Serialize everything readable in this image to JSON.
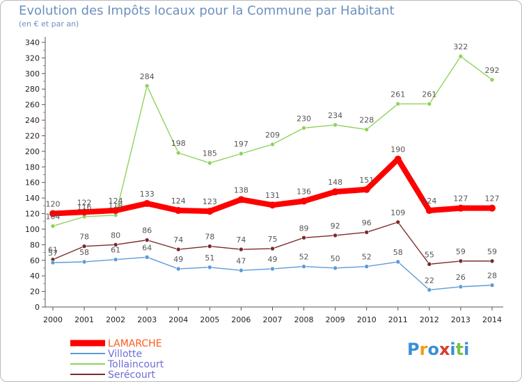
{
  "chart_data": {
    "type": "line",
    "title": "Evolution des Impôts locaux pour la Commune par Habitant",
    "subtitle": "(en € et par an)",
    "categories": [
      "2000",
      "2001",
      "2002",
      "2003",
      "2004",
      "2005",
      "2006",
      "2007",
      "2008",
      "2009",
      "2010",
      "2011",
      "2012",
      "2013",
      "2014"
    ],
    "ylim": [
      0,
      340
    ],
    "yticks": [
      0,
      20,
      40,
      60,
      80,
      100,
      120,
      140,
      160,
      180,
      200,
      220,
      240,
      260,
      280,
      300,
      320,
      340
    ],
    "grid": false,
    "legend_position": "bottom-left",
    "series": [
      {
        "name": "LAMARCHE",
        "color": "#ff0000",
        "values": [
          120,
          122,
          124,
          133,
          124,
          123,
          138,
          131,
          136,
          148,
          151,
          190,
          124,
          127,
          127
        ]
      },
      {
        "name": "Villotte",
        "color": "#5b9bd5",
        "values": [
          57,
          58,
          61,
          64,
          49,
          51,
          47,
          49,
          52,
          50,
          52,
          58,
          22,
          26,
          28
        ]
      },
      {
        "name": "Tollaincourt",
        "color": "#8fd25a",
        "values": [
          104,
          116,
          118,
          284,
          198,
          185,
          197,
          209,
          230,
          234,
          228,
          261,
          261,
          322,
          292
        ]
      },
      {
        "name": "Serécourt",
        "color": "#7a2a2a",
        "values": [
          61,
          78,
          80,
          86,
          74,
          78,
          74,
          75,
          89,
          92,
          96,
          109,
          55,
          59,
          59
        ]
      }
    ]
  },
  "logo": {
    "text": "Proxiti",
    "colors": [
      "#3a8fd8",
      "#f39c12",
      "#3a8fd8",
      "#d93b2b",
      "#3a8fd8",
      "#7cc142",
      "#3a8fd8"
    ]
  }
}
